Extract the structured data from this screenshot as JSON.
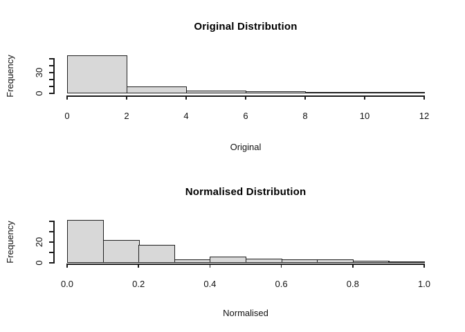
{
  "figure": {
    "background": "#ffffff",
    "text_color": "#111111",
    "axis_color": "#1a1a1a"
  },
  "chart_data": [
    {
      "type": "bar",
      "variant": "histogram",
      "title": "Original Distribution",
      "xlabel": "Original",
      "ylabel": "Frequency",
      "bins": {
        "start": 0,
        "width": 2
      },
      "values": [
        55,
        10,
        4,
        3,
        2,
        2
      ],
      "xlim": [
        0,
        12
      ],
      "ylim": [
        0,
        55
      ],
      "x_ticks": [
        0,
        2,
        4,
        6,
        8,
        10,
        12
      ],
      "x_tick_labels": [
        "0",
        "2",
        "4",
        "6",
        "8",
        "10",
        "12"
      ],
      "y_ticks": [
        0,
        10,
        20,
        30,
        40,
        50
      ],
      "y_tick_labels": [
        "0",
        "",
        "",
        "30",
        "",
        ""
      ],
      "bar_fill": "#d8d8d8",
      "bar_border": "#1f1f1f",
      "grid": false,
      "legend": "none"
    },
    {
      "type": "bar",
      "variant": "histogram",
      "title": "Normalised Distribution",
      "xlabel": "Normalised",
      "ylabel": "Frequency",
      "bins": {
        "start": 0,
        "width": 0.1
      },
      "values": [
        41,
        22,
        17,
        3,
        6,
        4,
        3,
        3,
        2,
        1
      ],
      "xlim": [
        0,
        1
      ],
      "ylim": [
        0,
        41
      ],
      "x_ticks": [
        0,
        0.2,
        0.4,
        0.6,
        0.8,
        1.0
      ],
      "x_tick_labels": [
        "0.0",
        "0.2",
        "0.4",
        "0.6",
        "0.8",
        "1.0"
      ],
      "y_ticks": [
        0,
        10,
        20,
        30,
        40
      ],
      "y_tick_labels": [
        "0",
        "",
        "20",
        "",
        ""
      ],
      "bar_fill": "#d8d8d8",
      "bar_border": "#1f1f1f",
      "grid": false,
      "legend": "none"
    }
  ]
}
